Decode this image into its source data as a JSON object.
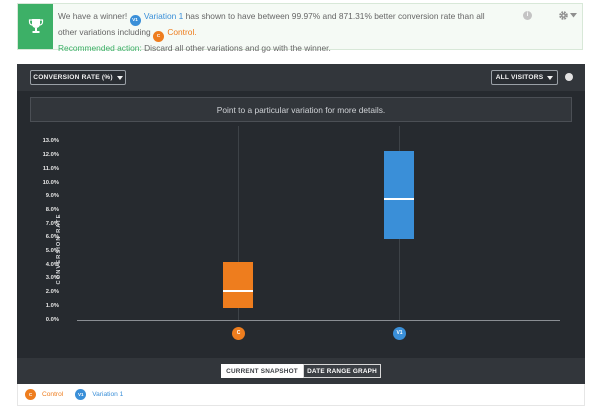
{
  "banner": {
    "intro": "We have a winner!",
    "winner_badge": "V1",
    "winner_name": "Variation 1",
    "mid": "has shown to have between",
    "low_pct": "99.97%",
    "and": "and",
    "high_pct": "871.31%",
    "tail": "better conversion rate than all other variations including",
    "control_badge": "C",
    "control_name": "Control.",
    "action_label": "Recommended action:",
    "action_text": "Discard all other variations and go with the winner.",
    "info_icon": "info-icon",
    "settings_icon": "gear-icon",
    "trophy_icon": "trophy-icon",
    "accent_color": "#3db067"
  },
  "toolbar": {
    "metric_label": "CONVERSION RATE (%)",
    "segment_label": "ALL VISITORS"
  },
  "hint": "Point to a particular variation for more details.",
  "chart_data": {
    "type": "box",
    "ylabel": "CONVERSION RATE",
    "yticks": [
      "0.0%",
      "1.0%",
      "2.0%",
      "3.0%",
      "4.0%",
      "5.0%",
      "6.0%",
      "7.0%",
      "8.0%",
      "9.0%",
      "10.0%",
      "11.0%",
      "12.0%",
      "13.0%"
    ],
    "ylim": [
      0,
      13
    ],
    "series": [
      {
        "name": "Control",
        "badge": "C",
        "color": "#ee7d1e",
        "low": 0.9,
        "median": 2.1,
        "high": 4.2
      },
      {
        "name": "Variation 1",
        "badge": "V1",
        "color": "#3a8fd8",
        "low": 5.9,
        "median": 8.8,
        "high": 12.3
      }
    ]
  },
  "footer": {
    "snapshot_label": "CURRENT SNAPSHOT",
    "daterange_label": "DATE RANGE GRAPH"
  },
  "legend": [
    {
      "badge": "C",
      "label": "Control",
      "color": "#ee7d1e"
    },
    {
      "badge": "V1",
      "label": "Variation 1",
      "color": "#3a8fd8"
    }
  ]
}
